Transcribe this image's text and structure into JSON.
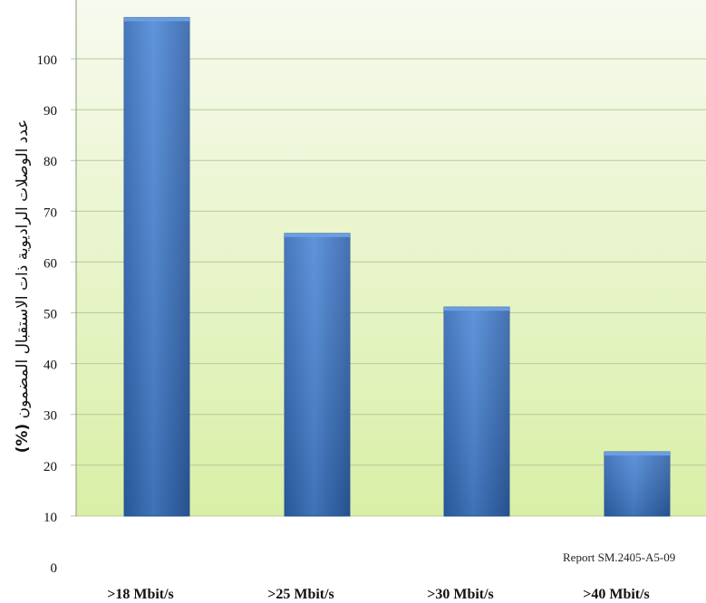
{
  "chart_data": {
    "type": "bar",
    "categories": [
      ">18 Mbit/s",
      ">25 Mbit/s",
      ">30 Mbit/s",
      ">40 Mbit/s"
    ],
    "values": [
      100,
      57.5,
      43,
      14.5
    ],
    "ylabel": "عدد الوصلات الراديوية ذات الاستقبال المضمون",
    "ylabel_unit": "(%)",
    "y_ticks": [
      "0",
      "10",
      "20",
      "30",
      "40",
      "50",
      "60",
      "70",
      "80",
      "90",
      "100"
    ],
    "ylim": [
      0,
      100
    ],
    "grid": true,
    "note": "Report SM.2405-A5-09",
    "colors": {
      "bar": "#3f78c8",
      "bar_dark": "#2e5c9e",
      "plot_bg_top": "#f6f9ee",
      "plot_bg_bottom": "#dcf0ae",
      "grid": "#b9c99a"
    }
  }
}
